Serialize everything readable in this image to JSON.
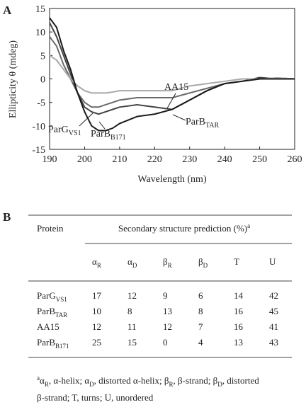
{
  "panel_labels": [
    "A",
    "B"
  ],
  "chart_data": {
    "type": "line",
    "x_label": "Wavelength (nm)",
    "y_label": "Ellipticity θ (mdeg)",
    "x": [
      190,
      192,
      194,
      196,
      198,
      200,
      202,
      204,
      206,
      208,
      210,
      215,
      220,
      225,
      230,
      235,
      240,
      245,
      250,
      255,
      260
    ],
    "series": [
      {
        "name": [
          {
            "text": "ParG"
          },
          {
            "text": "VS1",
            "pos": "sub"
          }
        ],
        "color": "#6a6a6a",
        "values": [
          9,
          7,
          3,
          0,
          -3,
          -5,
          -6,
          -6,
          -5.5,
          -5,
          -4.5,
          -4,
          -4,
          -4,
          -3,
          -2,
          -1,
          -0.5,
          0,
          0.2,
          0
        ]
      },
      {
        "name": [
          {
            "text": "ParB"
          },
          {
            "text": "TAR",
            "pos": "sub"
          }
        ],
        "color": "#444444",
        "values": [
          12,
          9,
          5,
          1,
          -3,
          -6,
          -7,
          -7.5,
          -7,
          -6.5,
          -6,
          -5.5,
          -6,
          -6.5,
          -4.5,
          -2.5,
          -1,
          -0.5,
          0.3,
          0,
          0
        ]
      },
      {
        "name": [
          {
            "text": "AA15"
          }
        ],
        "color": "#a8a8a8",
        "values": [
          5,
          4,
          2,
          0,
          -1.5,
          -2.5,
          -3,
          -3,
          -3,
          -2.8,
          -2.5,
          -2.5,
          -2.5,
          -2.5,
          -1.5,
          -1,
          -0.5,
          0,
          0,
          0.2,
          0
        ]
      },
      {
        "name": [
          {
            "text": "ParB"
          },
          {
            "text": "B171",
            "pos": "sub"
          }
        ],
        "color": "#1a1a1a",
        "values": [
          13,
          11,
          6,
          2,
          -3,
          -7,
          -10,
          -11,
          -11,
          -10.5,
          -9.5,
          -8,
          -7.5,
          -6.5,
          -4.5,
          -2.5,
          -1,
          -0.5,
          0,
          0,
          0
        ]
      }
    ],
    "xlim": [
      190,
      260
    ],
    "xticks": [
      190,
      200,
      210,
      220,
      230,
      240,
      250,
      260
    ],
    "ylim": [
      -15,
      15
    ],
    "yticks": [
      -15,
      -10,
      -5,
      0,
      5,
      10,
      15
    ]
  },
  "table": {
    "header": [
      [
        {
          "text": "Protein"
        }
      ],
      [
        {
          "text": "Secondary structure prediction (%)"
        },
        {
          "text": "a",
          "pos": "sup"
        }
      ]
    ],
    "columns": [
      [
        {
          "text": "α"
        },
        {
          "text": "R",
          "pos": "sub"
        }
      ],
      [
        {
          "text": "α"
        },
        {
          "text": "D",
          "pos": "sub"
        }
      ],
      [
        {
          "text": "β"
        },
        {
          "text": "R",
          "pos": "sub"
        }
      ],
      [
        {
          "text": "β"
        },
        {
          "text": "D",
          "pos": "sub"
        }
      ],
      [
        {
          "text": "T"
        }
      ],
      [
        {
          "text": "U"
        }
      ]
    ],
    "rows": [
      {
        "protein": [
          {
            "text": "ParG"
          },
          {
            "text": "VS1",
            "pos": "sub"
          }
        ],
        "values": [
          17,
          12,
          9,
          6,
          14,
          42
        ]
      },
      {
        "protein": [
          {
            "text": "ParB"
          },
          {
            "text": "TAR",
            "pos": "sub"
          }
        ],
        "values": [
          10,
          8,
          13,
          8,
          16,
          45
        ]
      },
      {
        "protein": [
          {
            "text": "AA15"
          }
        ],
        "values": [
          12,
          11,
          12,
          7,
          16,
          41
        ]
      },
      {
        "protein": [
          {
            "text": "ParB"
          },
          {
            "text": "B171",
            "pos": "sub"
          }
        ],
        "values": [
          25,
          15,
          0,
          4,
          13,
          43
        ]
      }
    ],
    "footnote": [
      [
        {
          "text": "a",
          "pos": "sup"
        },
        {
          "text": "α"
        },
        {
          "text": "R",
          "pos": "sub"
        },
        {
          "text": ", α-helix; α"
        },
        {
          "text": "D",
          "pos": "sub"
        },
        {
          "text": ", distorted α-helix; β"
        },
        {
          "text": "R",
          "pos": "sub"
        },
        {
          "text": ", β-strand; β"
        },
        {
          "text": "D",
          "pos": "sub"
        },
        {
          "text": ", distorted"
        }
      ],
      [
        {
          "text": "β-strand; T, turns; U, unordered"
        }
      ]
    ]
  }
}
